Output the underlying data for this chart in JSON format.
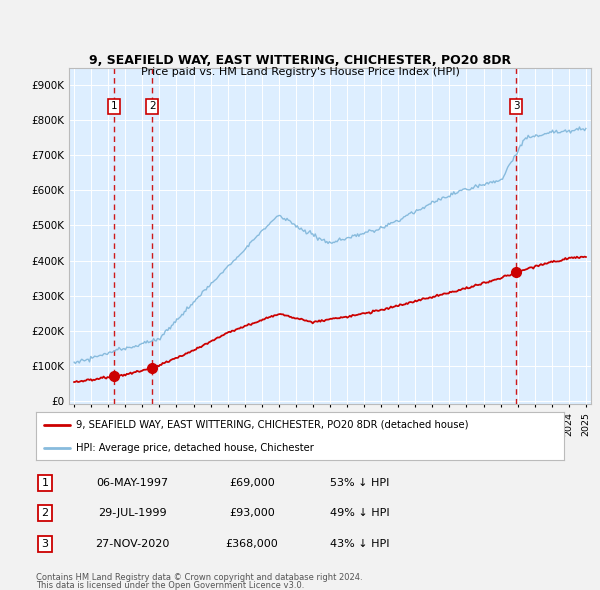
{
  "title": "9, SEAFIELD WAY, EAST WITTERING, CHICHESTER, PO20 8DR",
  "subtitle": "Price paid vs. HM Land Registry's House Price Index (HPI)",
  "ylabel_vals": [
    0,
    100000,
    200000,
    300000,
    400000,
    500000,
    600000,
    700000,
    800000,
    900000
  ],
  "ylabel_labels": [
    "£0",
    "£100K",
    "£200K",
    "£300K",
    "£400K",
    "£500K",
    "£600K",
    "£700K",
    "£800K",
    "£900K"
  ],
  "xlim": [
    1994.7,
    2025.3
  ],
  "ylim": [
    -10000,
    950000
  ],
  "sale_dates": [
    1997.35,
    1999.57,
    2020.91
  ],
  "sale_prices": [
    69000,
    93000,
    368000
  ],
  "sale_labels": [
    "1",
    "2",
    "3"
  ],
  "sale_date_strs": [
    "06-MAY-1997",
    "29-JUL-1999",
    "27-NOV-2020"
  ],
  "sale_price_strs": [
    "£69,000",
    "£93,000",
    "£368,000"
  ],
  "sale_hpi_strs": [
    "53% ↓ HPI",
    "49% ↓ HPI",
    "43% ↓ HPI"
  ],
  "legend_line1": "9, SEAFIELD WAY, EAST WITTERING, CHICHESTER, PO20 8DR (detached house)",
  "legend_line2": "HPI: Average price, detached house, Chichester",
  "footer1": "Contains HM Land Registry data © Crown copyright and database right 2024.",
  "footer2": "This data is licensed under the Open Government Licence v3.0.",
  "property_color": "#cc0000",
  "hpi_color": "#88bbdd",
  "background_color": "#ddeeff",
  "dashed_line_color": "#cc0000",
  "fig_bg": "#f2f2f2"
}
